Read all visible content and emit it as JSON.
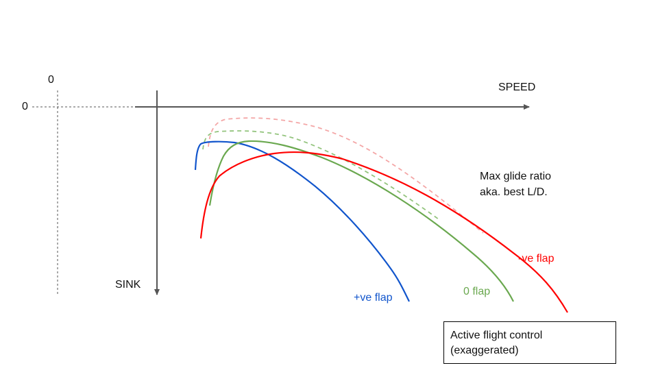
{
  "labels": {
    "origin_zero_top": "0",
    "origin_zero_left": "0",
    "speed_axis": "SPEED",
    "sink_axis": "SINK",
    "max_glide_line1": "Max glide ratio",
    "max_glide_line2": "aka. best L/D."
  },
  "curves": [
    {
      "id": "pos-flap",
      "label": "+ve flap",
      "color": "#1155cc",
      "style": "solid"
    },
    {
      "id": "zero-flap",
      "label": "0 flap",
      "color": "#6aa84f",
      "style": "solid"
    },
    {
      "id": "neg-flap",
      "label": "-ve flap",
      "color": "#ff0000",
      "style": "solid"
    },
    {
      "id": "zero-flap-active",
      "color": "#93c47d",
      "style": "dashed"
    },
    {
      "id": "neg-flap-active",
      "color": "#f4a6a6",
      "style": "dashed"
    }
  ],
  "note": {
    "line1": "Active flight control",
    "line2": "(exaggerated)"
  }
}
